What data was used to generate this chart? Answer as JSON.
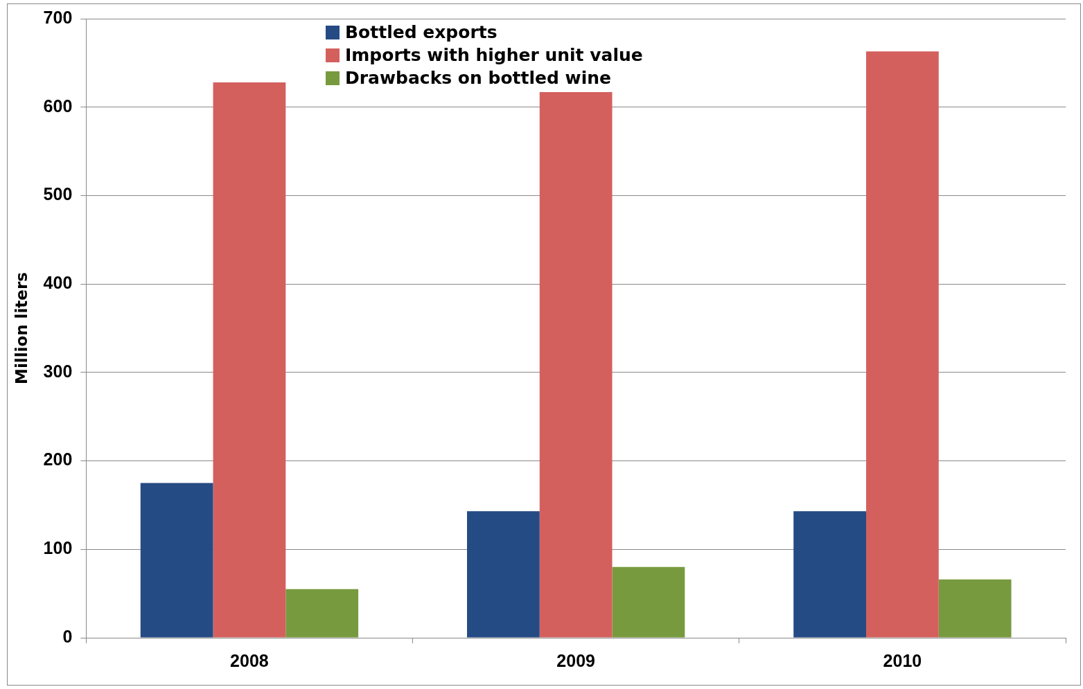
{
  "chart_data": {
    "type": "bar",
    "ylabel": "Million liters",
    "categories": [
      "2008",
      "2009",
      "2010"
    ],
    "series": [
      {
        "name": "Bottled exports",
        "color": "#254b84",
        "values": [
          175,
          143,
          143
        ]
      },
      {
        "name": "Imports with higher unit value",
        "color": "#d4605e",
        "values": [
          628,
          617,
          663
        ]
      },
      {
        "name": "Drawbacks on bottled wine",
        "color": "#779a3e",
        "values": [
          55,
          80,
          66
        ]
      }
    ],
    "ylim": [
      0,
      700
    ],
    "yticks": [
      0,
      100,
      200,
      300,
      400,
      500,
      600,
      700
    ],
    "grid": "y",
    "legend": "top"
  }
}
